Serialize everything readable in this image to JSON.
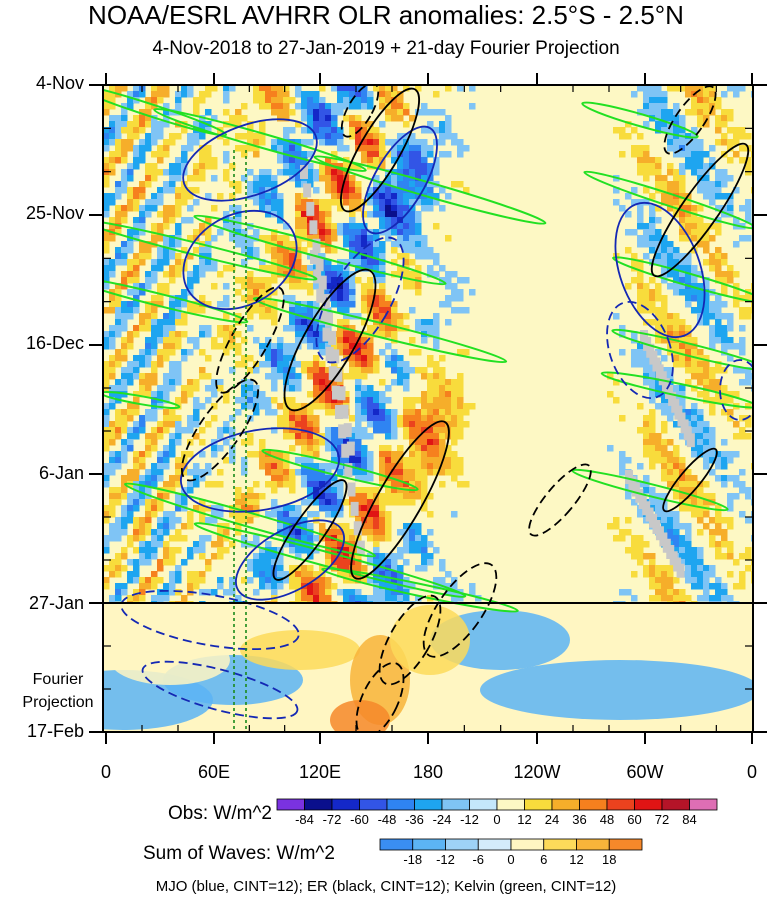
{
  "chart_data": {
    "type": "heatmap",
    "title": "NOAA/ESRL AVHRR OLR anomalies: 2.5°S - 2.5°N",
    "subtitle": "4-Nov-2018 to 27-Jan-2019 + 21-day Fourier Projection",
    "y_ticks": [
      "4-Nov",
      "25-Nov",
      "16-Dec",
      "6-Jan",
      "27-Jan",
      "17-Feb"
    ],
    "x_ticks": [
      "0",
      "60E",
      "120E",
      "180",
      "120W",
      "60W",
      "0"
    ],
    "fourier_label": [
      "Fourier",
      "Projection"
    ],
    "obs": {
      "label": "Obs: W/m^2",
      "levels": [
        -84,
        -72,
        -60,
        -48,
        -36,
        -24,
        -12,
        0,
        12,
        24,
        36,
        48,
        60,
        72,
        84
      ],
      "tick_labels": [
        "-84",
        "-72",
        "-60",
        "-48",
        "-36",
        "-24",
        "-12",
        "0",
        "12",
        "24",
        "36",
        "48",
        "60",
        "72",
        "84"
      ],
      "colors": [
        "#7a32e0",
        "#0a0f8c",
        "#1428c8",
        "#3255e6",
        "#2f84f2",
        "#1ea5f0",
        "#7fc4f5",
        "#c4e7fb",
        "#fdf8c4",
        "#f8dc3c",
        "#f6ae2a",
        "#f6801e",
        "#eb421e",
        "#e01414",
        "#b41428",
        "#de6eb4"
      ]
    },
    "waves": {
      "label": "Sum of Waves: W/m^2",
      "levels": [
        -18,
        -12,
        -6,
        0,
        6,
        12,
        18
      ],
      "tick_labels": [
        "-18",
        "-12",
        "-6",
        "0",
        "6",
        "12",
        "18"
      ],
      "colors": [
        "#3a8ef2",
        "#5cb4f5",
        "#9ed2f7",
        "#d4ecfb",
        "#fff6c2",
        "#fdda5a",
        "#f8b43a",
        "#f6882a"
      ]
    },
    "footnote": "MJO (blue, CINT=12); ER (black, CINT=12); Kelvin (green, CINT=12)",
    "contour_colors": {
      "mjo": "#1428b4",
      "er": "#000000",
      "kelvin": "#22e022"
    }
  }
}
